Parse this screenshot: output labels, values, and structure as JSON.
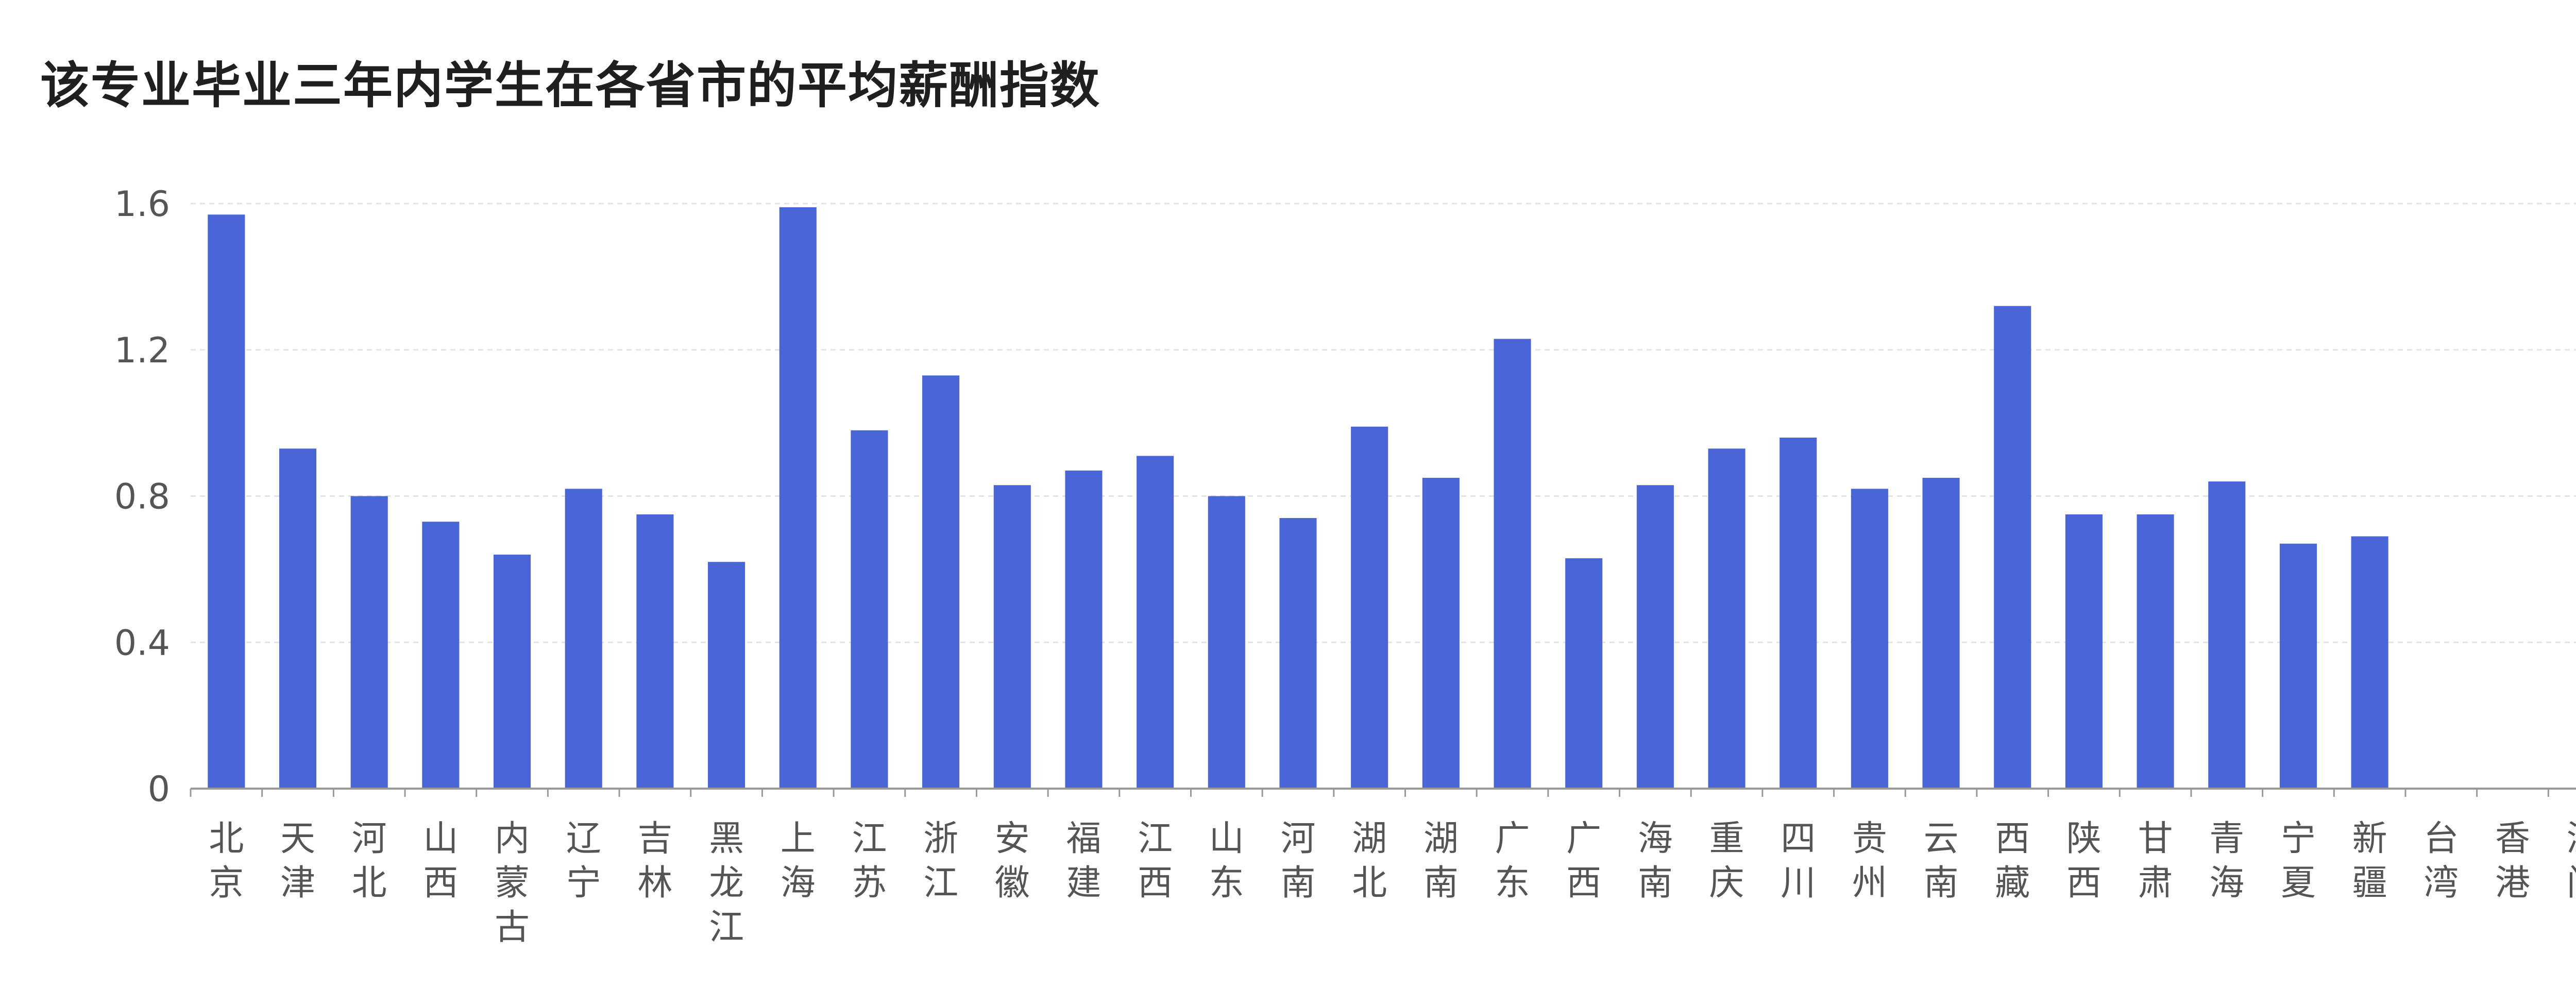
{
  "chart_data": {
    "type": "bar",
    "title": "该专业毕业三年内学生在各省市的平均薪酬指数",
    "xlabel": "",
    "ylabel": "",
    "ylim": [
      0,
      1.6
    ],
    "yticks": [
      "0",
      "0.4",
      "0.8",
      "1.2",
      "1.6"
    ],
    "grid": true,
    "legend": "none",
    "bar_color": "#4a66d6",
    "categories": [
      "北京",
      "天津",
      "河北",
      "山西",
      "内蒙古",
      "辽宁",
      "吉林",
      "黑龙江",
      "上海",
      "江苏",
      "浙江",
      "安徽",
      "福建",
      "江西",
      "山东",
      "河南",
      "湖北",
      "湖南",
      "广东",
      "广西",
      "海南",
      "重庆",
      "四川",
      "贵州",
      "云南",
      "西藏",
      "陕西",
      "甘肃",
      "青海",
      "宁夏",
      "新疆",
      "台湾",
      "香港",
      "澳门"
    ],
    "values": [
      1.57,
      0.93,
      0.8,
      0.73,
      0.64,
      0.82,
      0.75,
      0.62,
      1.59,
      0.98,
      1.13,
      0.83,
      0.87,
      0.91,
      0.8,
      0.74,
      0.99,
      0.85,
      1.23,
      0.63,
      0.83,
      0.93,
      0.96,
      0.82,
      0.85,
      1.32,
      0.75,
      0.75,
      0.84,
      0.67,
      0.69,
      null,
      null,
      null
    ]
  }
}
